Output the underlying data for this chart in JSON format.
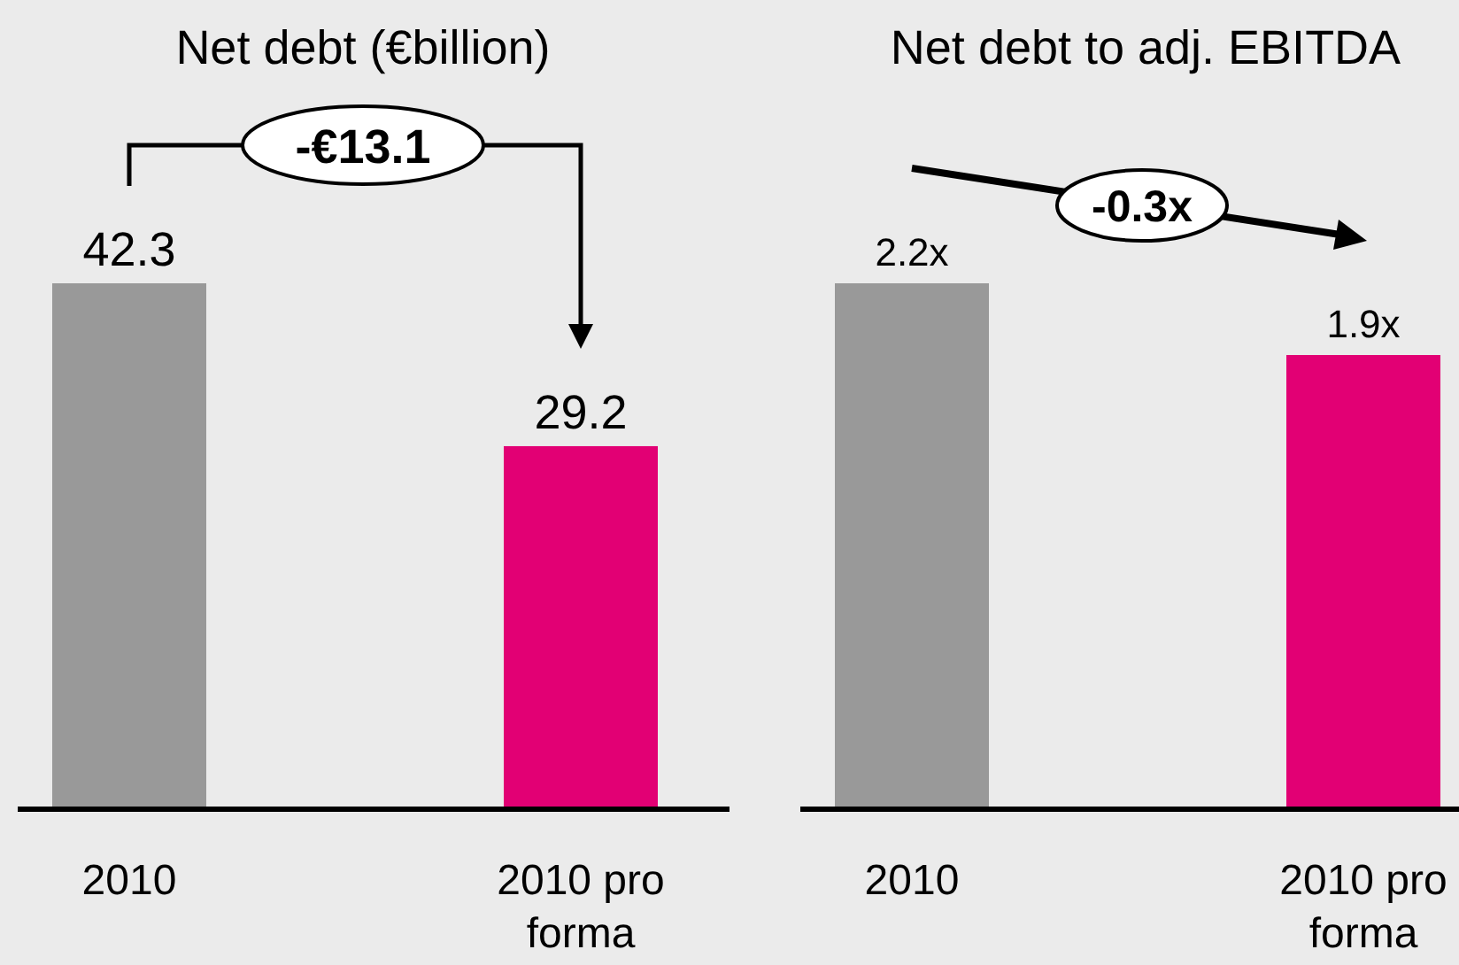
{
  "chart_data": [
    {
      "type": "bar",
      "title": "Net debt (€billion)",
      "categories": [
        "2010",
        "2010 pro forma"
      ],
      "values": [
        42.3,
        29.2
      ],
      "colors": [
        "#999999",
        "#e20074"
      ],
      "data_labels": true,
      "annotations": [
        "-€13.1"
      ]
    },
    {
      "type": "bar",
      "title": "Net debt to adj. EBITDA",
      "categories": [
        "2010",
        "2010 pro forma"
      ],
      "values": [
        2.2,
        1.9
      ],
      "colors": [
        "#999999",
        "#e20074"
      ],
      "value_labels": [
        "2.2x",
        "1.9x"
      ],
      "annotations": [
        "-0.3x"
      ]
    }
  ]
}
